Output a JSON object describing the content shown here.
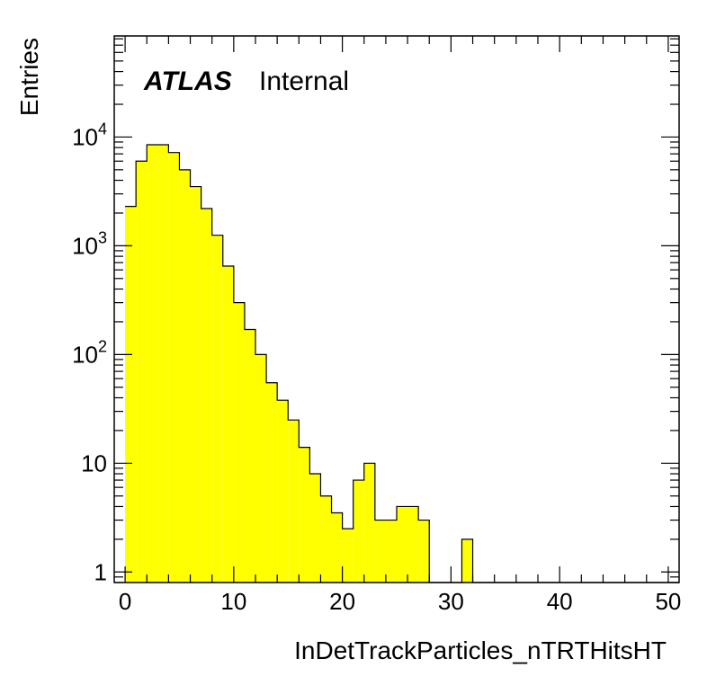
{
  "chart_data": {
    "type": "bar",
    "histogram": true,
    "xlabel": "InDetTrackParticles_nTRTHitsHT",
    "ylabel": "Entries",
    "annotation": {
      "experiment": "ATLAS",
      "status": "Internal"
    },
    "bin_edges_start": 0,
    "bin_width": 1,
    "values": [
      2300,
      6000,
      8500,
      8500,
      7200,
      5000,
      3500,
      2200,
      1250,
      650,
      300,
      170,
      100,
      55,
      38,
      25,
      14,
      8,
      5,
      3.5,
      2.5,
      7,
      10,
      3,
      3,
      4,
      4,
      3,
      0,
      0,
      0,
      2,
      0,
      0,
      0,
      0,
      0,
      0,
      0,
      0,
      0,
      0,
      0,
      0,
      0,
      0,
      0,
      0,
      0,
      0,
      0
    ],
    "xlim": [
      -1,
      51
    ],
    "ylim": [
      0.8,
      85000
    ],
    "log_y": true,
    "x_ticks": [
      0,
      10,
      20,
      30,
      40,
      50
    ],
    "y_ticks": [
      {
        "value": 1,
        "label": "1"
      },
      {
        "value": 10,
        "label": "10"
      },
      {
        "value": 100,
        "base": "10",
        "exp": "2"
      },
      {
        "value": 1000,
        "base": "10",
        "exp": "3"
      },
      {
        "value": 10000,
        "base": "10",
        "exp": "4"
      }
    ],
    "fill_color": "#ffff00",
    "line_color": "#000000"
  }
}
